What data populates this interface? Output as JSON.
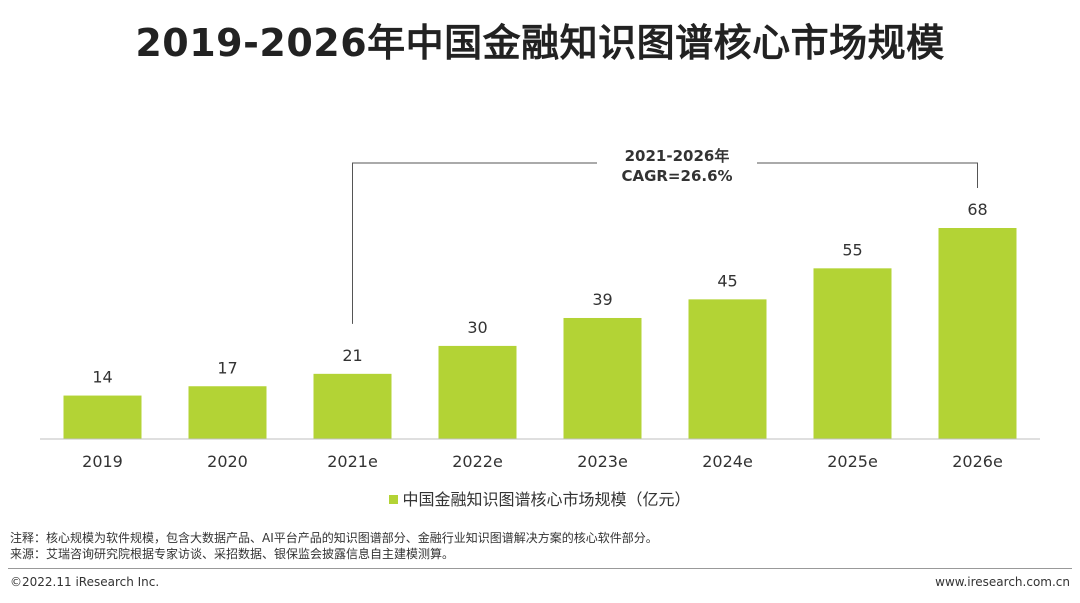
{
  "title": "2019-2026年中国金融知识图谱核心市场规模",
  "annotation": {
    "line1": "2021-2026年",
    "line2": "CAGR=26.6%"
  },
  "legend_label": "中国金融知识图谱核心市场规模（亿元）",
  "notes": {
    "note": "注释：核心规模为软件规模，包含大数据产品、AI平台产品的知识图谱部分、金融行业知识图谱解决方案的核心软件部分。",
    "source": "来源：艾瑞咨询研究院根据专家访谈、采招数据、银保监会披露信息自主建模测算。"
  },
  "footer": {
    "copyright": "©2022.11 iResearch Inc.",
    "website": "www.iresearch.com.cn"
  },
  "colors": {
    "bar": "#b3d335"
  },
  "chart_data": {
    "type": "bar",
    "categories": [
      "2019",
      "2020",
      "2021e",
      "2022e",
      "2023e",
      "2024e",
      "2025e",
      "2026e"
    ],
    "series": [
      {
        "name": "中国金融知识图谱核心市场规模（亿元）",
        "values": [
          14,
          17,
          21,
          30,
          39,
          45,
          55,
          68
        ]
      }
    ],
    "ylim": [
      0,
      68
    ],
    "grid": false,
    "legend_position": "bottom",
    "annotation_range": [
      "2021e",
      "2026e"
    ]
  }
}
